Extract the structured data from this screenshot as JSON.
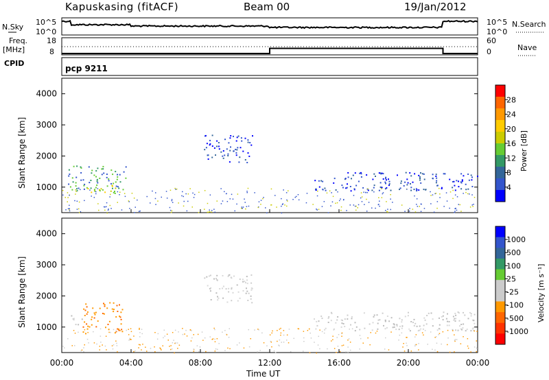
{
  "header": {
    "station": "Kapuskasing (fitACF)",
    "beam": "Beam 00",
    "date": "19/Jan/2012"
  },
  "noise_panel": {
    "left_label": "N.Sky",
    "right_label": "N.Search",
    "ticks": [
      "10^5",
      "10^0"
    ]
  },
  "freq_panel": {
    "left_label_1": "Freq.",
    "left_label_2": "[MHz]",
    "left_ticks": [
      "18",
      "8"
    ],
    "right_ticks": [
      "60",
      "0"
    ],
    "right_label": "Nave",
    "cpid_label": "CPID",
    "program": "pcp 9211",
    "frequency_steps": [
      {
        "from": "00:00",
        "to": "12:00",
        "mhz": 10
      },
      {
        "from": "12:00",
        "to": "22:00",
        "mhz": 13
      },
      {
        "from": "22:00",
        "to": "24:00",
        "mhz": 10
      }
    ]
  },
  "chart_data": [
    {
      "type": "heatmap",
      "title": "Power",
      "ylabel": "Slant Range [km]",
      "xlabel": "Time UT",
      "ylim": [
        180,
        4500
      ],
      "xlim": [
        "00:00",
        "24:00"
      ],
      "x_ticks": [
        "00:00",
        "04:00",
        "08:00",
        "12:00",
        "16:00",
        "20:00",
        "00:00"
      ],
      "y_ticks": [
        "1000",
        "2000",
        "3000",
        "4000"
      ],
      "colorbar": {
        "label": "Power [dB]",
        "ticks": [
          "28",
          "24",
          "20",
          "16",
          "12",
          "8",
          "4"
        ],
        "colors": [
          "#ff0000",
          "#ff6600",
          "#ff9900",
          "#ffcc00",
          "#cccc00",
          "#66cc33",
          "#339966",
          "#336699",
          "#3355cc",
          "#0000ff"
        ]
      },
      "echo_regions": [
        {
          "t0": 0.3,
          "t1": 3.8,
          "r0": 900,
          "r1": 1700,
          "level": "medium"
        },
        {
          "t0": 1.2,
          "t1": 3.3,
          "r0": 800,
          "r1": 1100,
          "level": "high"
        },
        {
          "t0": 8.2,
          "t1": 11.0,
          "r0": 1800,
          "r1": 2700,
          "level": "low"
        },
        {
          "t0": 14.5,
          "t1": 24.0,
          "r0": 900,
          "r1": 1500,
          "level": "low"
        }
      ]
    },
    {
      "type": "heatmap",
      "title": "Velocity",
      "ylabel": "Slant Range [km]",
      "xlabel": "Time UT",
      "ylim": [
        180,
        4500
      ],
      "x_ticks": [
        "00:00",
        "04:00",
        "08:00",
        "12:00",
        "16:00",
        "20:00",
        "00:00"
      ],
      "y_ticks": [
        "1000",
        "2000",
        "3000",
        "4000"
      ],
      "colorbar": {
        "label": "Velocity [m s⁻¹]",
        "ticks": [
          "1000",
          "500",
          "100",
          "25",
          "-25",
          "-100",
          "-500",
          "-1000"
        ],
        "colors": [
          "#0000ff",
          "#3355cc",
          "#336699",
          "#339966",
          "#66cc33",
          "#cccccc",
          "#cccccc",
          "#ff9900",
          "#ff6600",
          "#ff3300",
          "#ff0000"
        ]
      },
      "echo_regions": [
        {
          "t0": 0.3,
          "t1": 1.2,
          "r0": 1100,
          "r1": 1400,
          "level": "ground"
        },
        {
          "t0": 1.2,
          "t1": 3.5,
          "r0": 800,
          "r1": 1800,
          "level": "negative"
        },
        {
          "t0": 8.2,
          "t1": 11.0,
          "r0": 1800,
          "r1": 2700,
          "level": "ground"
        },
        {
          "t0": 14.5,
          "t1": 24.0,
          "r0": 900,
          "r1": 1500,
          "level": "ground"
        }
      ]
    }
  ]
}
